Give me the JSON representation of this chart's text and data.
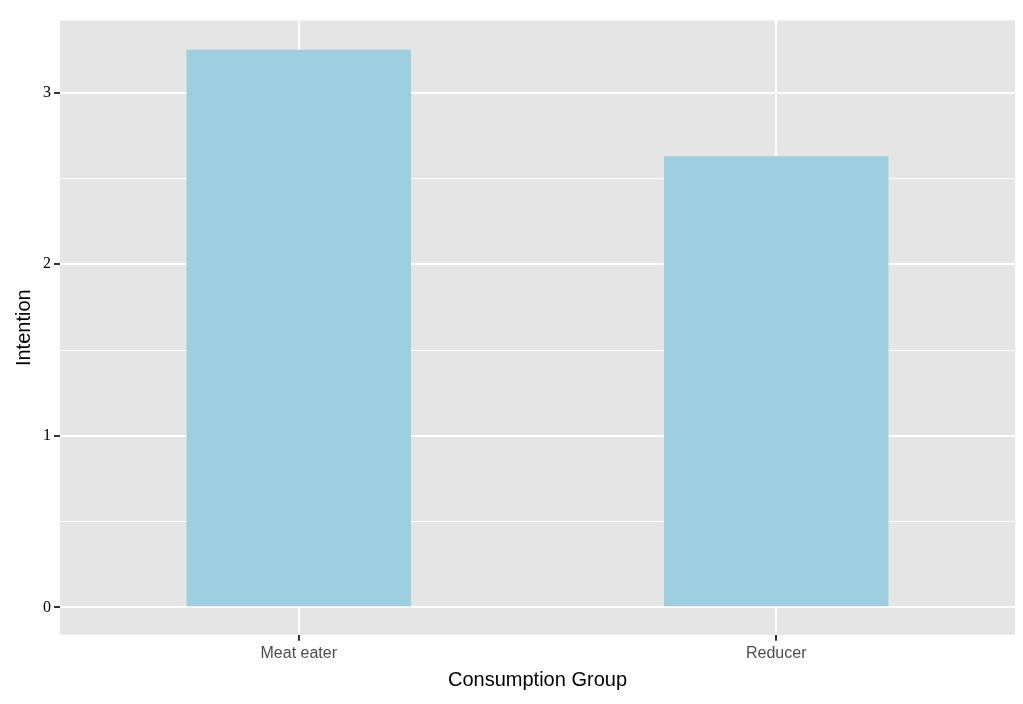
{
  "chart_data": {
    "type": "bar",
    "xlabel": "Consumption Group",
    "ylabel": "Intention",
    "categories": [
      "Meat eater",
      "Reducer"
    ],
    "values": [
      3.25,
      2.63
    ],
    "color": "#9ecfe0",
    "ylim": [
      -0.16,
      3.42
    ],
    "yticks": [
      0,
      {
        "value": 0.5,
        "label": null
      },
      1,
      {
        "value": 1.5,
        "label": null
      },
      2,
      {
        "value": 2.5,
        "label": null
      },
      3
    ],
    "grid": true,
    "legend": false
  }
}
